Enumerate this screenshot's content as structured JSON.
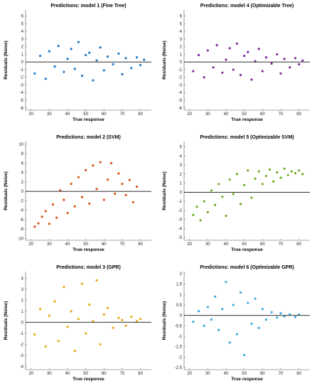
{
  "figure": {
    "background": "#ffffff"
  },
  "chart_data": [
    {
      "type": "scatter",
      "title": "Predictions: model 1 (Fine Tree)",
      "xlabel": "True response",
      "ylabel": "Residuals (Noise)",
      "xlim": [
        17,
        86
      ],
      "ylim": [
        -6.3,
        6.8
      ],
      "xticks": [
        20,
        30,
        40,
        50,
        60,
        70,
        80
      ],
      "yticks": [
        -6,
        -5,
        -4,
        -3,
        -2,
        -1,
        0,
        1,
        2,
        3,
        4,
        5,
        6
      ],
      "grid": false,
      "zero_line": 0,
      "color": "#1f77c9",
      "series": [
        {
          "x": [
            22,
            25,
            28,
            30,
            33,
            35,
            38,
            40,
            42,
            44,
            46,
            48,
            50,
            52,
            54,
            56,
            58,
            60,
            62,
            65,
            68,
            70,
            72,
            75,
            78,
            80,
            82
          ],
          "y": [
            -1.5,
            0.8,
            -2.2,
            1.4,
            -0.6,
            2.1,
            -1.3,
            0.4,
            1.7,
            -0.9,
            2.6,
            -1.8,
            0.9,
            1.2,
            -2.4,
            0.2,
            1.9,
            -1.1,
            0.7,
            -0.3,
            1.1,
            -1.6,
            0.5,
            -0.8,
            0.6,
            -0.4,
            0.3
          ]
        }
      ]
    },
    {
      "type": "scatter",
      "title": "Predictions: model 4 (Optimizable Tree)",
      "xlabel": "True response",
      "ylabel": "Residuals (Noise)",
      "xlim": [
        17,
        86
      ],
      "ylim": [
        -6.3,
        6.8
      ],
      "xticks": [
        20,
        30,
        40,
        50,
        60,
        70,
        80
      ],
      "yticks": [
        -6,
        -5,
        -4,
        -3,
        -2,
        -1,
        0,
        1,
        2,
        3,
        4,
        5,
        6
      ],
      "grid": false,
      "zero_line": 0,
      "color": "#7f2a9f",
      "series": [
        {
          "x": [
            22,
            25,
            28,
            30,
            33,
            35,
            38,
            40,
            42,
            44,
            46,
            48,
            50,
            52,
            54,
            56,
            58,
            60,
            62,
            65,
            68,
            70,
            72,
            75,
            78,
            80,
            82
          ],
          "y": [
            -1.2,
            0.9,
            -2.0,
            1.5,
            -0.7,
            2.2,
            -1.4,
            0.3,
            1.8,
            -1.0,
            2.4,
            -1.7,
            0.8,
            1.3,
            -2.3,
            0.1,
            1.7,
            -1.2,
            0.6,
            -0.2,
            1.0,
            -1.5,
            0.4,
            -0.7,
            0.5,
            -0.3,
            0.2
          ]
        }
      ]
    },
    {
      "type": "scatter",
      "title": "Predictions: model 2 (SVM)",
      "xlabel": "True response",
      "ylabel": "Residuals (Noise)",
      "xlim": [
        17,
        86
      ],
      "ylim": [
        -10.4,
        10.6
      ],
      "xticks": [
        20,
        30,
        40,
        50,
        60,
        70,
        80
      ],
      "yticks": [
        -10,
        -8,
        -6,
        -4,
        -2,
        0,
        2,
        4,
        6,
        8,
        10
      ],
      "grid": false,
      "zero_line": 0,
      "color": "#d9541a",
      "series": [
        {
          "x": [
            22,
            24,
            26,
            28,
            30,
            32,
            34,
            36,
            38,
            40,
            42,
            44,
            46,
            48,
            50,
            52,
            54,
            56,
            58,
            60,
            62,
            64,
            66,
            68,
            70,
            72,
            74,
            76,
            78
          ],
          "y": [
            -7.5,
            -6.8,
            -5.4,
            -4.2,
            -6.9,
            -2.8,
            -5.6,
            0.2,
            -1.8,
            -4.6,
            1.6,
            -3.2,
            3.0,
            -1.2,
            4.5,
            -2.6,
            5.5,
            0.5,
            6.2,
            -1.8,
            2.5,
            6.0,
            -0.5,
            3.8,
            1.6,
            -0.8,
            2.4,
            -2.3,
            1.0
          ]
        }
      ]
    },
    {
      "type": "scatter",
      "title": "Predictions: model 5 (Optimizable SVM)",
      "xlabel": "True response",
      "ylabel": "Residuals (Noise)",
      "xlim": [
        17,
        86
      ],
      "ylim": [
        -5.3,
        5.6
      ],
      "xticks": [
        20,
        30,
        40,
        50,
        60,
        70,
        80
      ],
      "yticks": [
        -5,
        -4,
        -3,
        -2,
        -1,
        0,
        1,
        2,
        3,
        4,
        5
      ],
      "grid": false,
      "zero_line": 0,
      "color": "#6faa22",
      "series": [
        {
          "x": [
            22,
            24,
            26,
            28,
            30,
            32,
            34,
            36,
            38,
            40,
            42,
            44,
            46,
            48,
            50,
            52,
            54,
            56,
            58,
            60,
            62,
            64,
            66,
            68,
            70,
            72,
            74,
            76,
            78,
            80,
            82
          ],
          "y": [
            -2.5,
            -1.6,
            -3.1,
            -1.0,
            -2.2,
            0.2,
            -1.4,
            0.9,
            -0.5,
            -2.6,
            1.4,
            -0.2,
            2.0,
            -1.3,
            0.8,
            2.4,
            -0.6,
            1.5,
            2.3,
            0.9,
            1.8,
            2.5,
            1.2,
            2.2,
            1.6,
            2.6,
            1.9,
            2.3,
            2.1,
            2.4,
            2.0
          ]
        }
      ]
    },
    {
      "type": "scatter",
      "title": "Predictions: model 3 (GPR)",
      "xlabel": "True response",
      "ylabel": "Residuals (Noise)",
      "xlim": [
        17,
        86
      ],
      "ylim": [
        -4.3,
        4.6
      ],
      "xticks": [
        20,
        30,
        40,
        50,
        60,
        70,
        80
      ],
      "yticks": [
        -4,
        -3,
        -2,
        -1,
        0,
        1,
        2,
        3,
        4
      ],
      "grid": false,
      "zero_line": 0,
      "color": "#e9a80e",
      "series": [
        {
          "x": [
            22,
            25,
            28,
            30,
            33,
            35,
            38,
            40,
            42,
            44,
            46,
            48,
            50,
            52,
            54,
            56,
            58,
            60,
            62,
            65,
            68,
            70,
            72,
            75,
            78,
            80
          ],
          "y": [
            -1.1,
            1.2,
            -2.2,
            0.6,
            1.9,
            -1.7,
            3.2,
            -0.4,
            1.0,
            -2.6,
            0.3,
            3.5,
            -1.0,
            1.6,
            0.1,
            3.8,
            -2.0,
            0.7,
            1.3,
            -0.5,
            0.4,
            0.2,
            -0.3,
            0.5,
            0.1,
            0.3
          ]
        }
      ]
    },
    {
      "type": "scatter",
      "title": "Predictions: model 6 (Optimizable GPR)",
      "xlabel": "True response",
      "ylabel": "Residuals (Noise)",
      "xlim": [
        17,
        86
      ],
      "ylim": [
        -2.6,
        2.1
      ],
      "xticks": [
        20,
        30,
        40,
        50,
        60,
        70,
        80
      ],
      "yticks": [
        -2.5,
        -2,
        -1.5,
        -1,
        -0.5,
        0,
        0.5,
        1,
        1.5,
        2
      ],
      "grid": false,
      "zero_line": 0,
      "color": "#3aa8e0",
      "series": [
        {
          "x": [
            22,
            25,
            28,
            30,
            32,
            34,
            36,
            38,
            40,
            42,
            44,
            46,
            48,
            50,
            52,
            54,
            56,
            58,
            60,
            62,
            65,
            68,
            70,
            72,
            75,
            78,
            80
          ],
          "y": [
            -0.3,
            0.2,
            -0.5,
            0.4,
            -0.2,
            0.9,
            -0.7,
            0.3,
            1.6,
            -1.3,
            0.5,
            -0.9,
            1.1,
            -1.9,
            0.6,
            -0.4,
            0.8,
            -0.6,
            0.3,
            -0.2,
            0.15,
            -0.1,
            0.1,
            -0.05,
            0.05,
            -0.08,
            0.04
          ]
        }
      ]
    }
  ]
}
